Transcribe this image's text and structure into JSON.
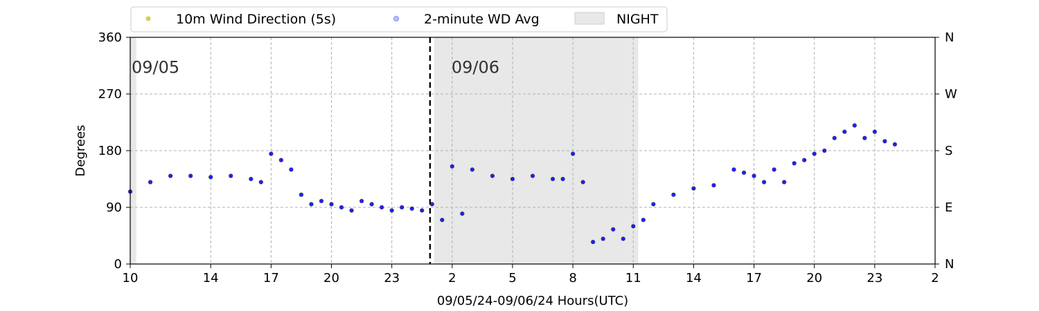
{
  "chart_data": {
    "type": "scatter",
    "xlabel": "09/05/24-09/06/24  Hours(UTC)",
    "ylabel": "Degrees",
    "x_unit": "hours UTC",
    "xlim": [
      10,
      50
    ],
    "ylim": [
      0,
      360
    ],
    "x_ticks": [
      {
        "value": 10,
        "label": "10"
      },
      {
        "value": 14,
        "label": "14"
      },
      {
        "value": 17,
        "label": "17"
      },
      {
        "value": 20,
        "label": "20"
      },
      {
        "value": 23,
        "label": "23"
      },
      {
        "value": 26,
        "label": "2"
      },
      {
        "value": 29,
        "label": "5"
      },
      {
        "value": 32,
        "label": "8"
      },
      {
        "value": 35,
        "label": "11"
      },
      {
        "value": 38,
        "label": "14"
      },
      {
        "value": 41,
        "label": "17"
      },
      {
        "value": 44,
        "label": "20"
      },
      {
        "value": 47,
        "label": "23"
      },
      {
        "value": 50,
        "label": "2"
      }
    ],
    "y_ticks": [
      {
        "value": 0,
        "label": "0"
      },
      {
        "value": 90,
        "label": "90"
      },
      {
        "value": 180,
        "label": "180"
      },
      {
        "value": 270,
        "label": "270"
      },
      {
        "value": 360,
        "label": "360"
      }
    ],
    "y_ticks_right": [
      {
        "value": 0,
        "label": "N"
      },
      {
        "value": 90,
        "label": "E"
      },
      {
        "value": 180,
        "label": "S"
      },
      {
        "value": 270,
        "label": "W"
      },
      {
        "value": 360,
        "label": "N"
      }
    ],
    "grid": true,
    "legend_placement": "top-center",
    "legend": [
      {
        "label": "10m Wind Direction (5s)",
        "color": "#bfbf00",
        "kind": "point"
      },
      {
        "label": "2-minute WD Avg",
        "color": "#0000ff",
        "kind": "point-faint"
      },
      {
        "label": "NIGHT",
        "color": "#e8e8e8",
        "kind": "patch"
      }
    ],
    "night_spans": [
      [
        10,
        10.3
      ],
      [
        25.1,
        35.25
      ]
    ],
    "day_divider_x": 24.9,
    "date_annotations": [
      {
        "text": "09/05",
        "x": 10.0,
        "y": 320
      },
      {
        "text": "09/06",
        "x": 25.9,
        "y": 320
      }
    ],
    "series": [
      {
        "name": "10m Wind Direction (5s)",
        "color": "#bfbf00",
        "x": [
          10,
          11,
          12,
          13,
          14,
          15,
          16,
          16.5,
          17,
          17.5,
          18,
          18.5,
          19,
          19.5,
          20,
          20.5,
          21,
          21.5,
          22,
          22.5,
          23,
          23.5,
          24,
          24.5,
          25,
          25.5,
          26,
          26.5,
          27,
          28,
          29,
          30,
          31,
          31.5,
          32,
          32.5,
          33,
          33.5,
          34,
          34.5,
          35,
          35.5,
          36,
          37,
          38,
          39,
          40,
          40.5,
          41,
          41.5,
          42,
          42.5,
          43,
          43.5,
          44,
          44.5,
          45,
          45.5,
          46,
          46.5,
          47,
          47.5,
          48
        ],
        "y": [
          115,
          130,
          140,
          140,
          138,
          140,
          135,
          130,
          175,
          165,
          150,
          110,
          95,
          100,
          95,
          90,
          85,
          100,
          95,
          90,
          85,
          90,
          88,
          85,
          95,
          70,
          155,
          80,
          150,
          140,
          135,
          140,
          135,
          135,
          175,
          130,
          35,
          40,
          55,
          40,
          60,
          70,
          95,
          110,
          120,
          125,
          150,
          145,
          140,
          130,
          150,
          130,
          160,
          165,
          175,
          180,
          200,
          210,
          220,
          200,
          210,
          195,
          190
        ]
      },
      {
        "name": "2-minute WD Avg",
        "color": "#0000ff",
        "x": [
          10,
          11,
          12,
          13,
          14,
          15,
          16,
          16.5,
          17,
          17.5,
          18,
          18.5,
          19,
          19.5,
          20,
          20.5,
          21,
          21.5,
          22,
          22.5,
          23,
          23.5,
          24,
          24.5,
          25,
          25.5,
          26,
          26.5,
          27,
          28,
          29,
          30,
          31,
          31.5,
          32,
          32.5,
          33,
          33.5,
          34,
          34.5,
          35,
          35.5,
          36,
          37,
          38,
          39,
          40,
          40.5,
          41,
          41.5,
          42,
          42.5,
          43,
          43.5,
          44,
          44.5,
          45,
          45.5,
          46,
          46.5,
          47,
          47.5,
          48
        ],
        "y": [
          115,
          130,
          140,
          140,
          138,
          140,
          135,
          130,
          175,
          165,
          150,
          110,
          95,
          100,
          95,
          90,
          85,
          100,
          95,
          90,
          85,
          90,
          88,
          85,
          95,
          70,
          155,
          80,
          150,
          140,
          135,
          140,
          135,
          135,
          175,
          130,
          35,
          40,
          55,
          40,
          60,
          70,
          95,
          110,
          120,
          125,
          150,
          145,
          140,
          130,
          150,
          130,
          160,
          165,
          175,
          180,
          200,
          210,
          220,
          200,
          210,
          195,
          190
        ]
      }
    ]
  }
}
